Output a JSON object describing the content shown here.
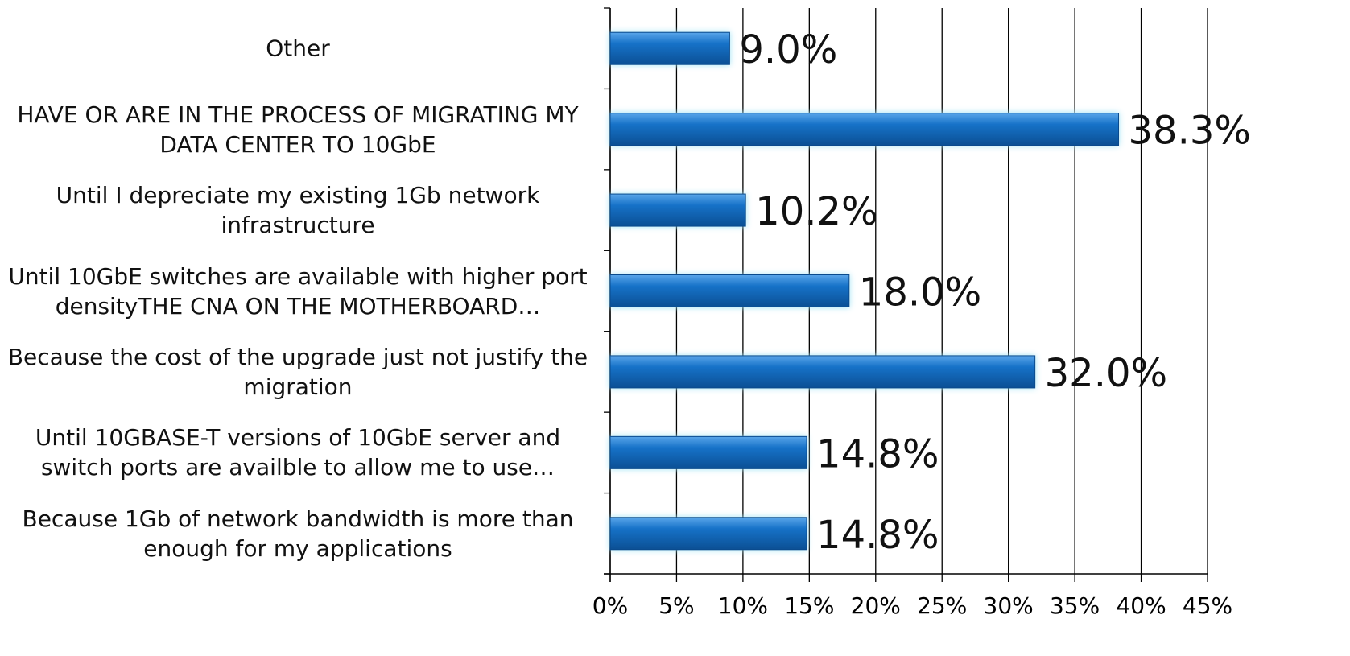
{
  "chart_data": {
    "type": "bar",
    "orientation": "horizontal",
    "categories": [
      "Other",
      "HAVE OR ARE IN THE PROCESS OF MIGRATING MY DATA CENTER TO 10GbE",
      "Until I depreciate my existing 1Gb network infrastructure",
      "Until 10GbE switches are available with higher port densityTHE CNA ON THE MOTHERBOARD…",
      "Because the cost of the upgrade just not justify the migration",
      "Until 10GBASE-T versions of 10GbE server and switch ports are availble to allow me to use…",
      "Because 1Gb of network bandwidth is more than enough for my applications"
    ],
    "values": [
      9.0,
      38.3,
      10.2,
      18.0,
      32.0,
      14.8,
      14.8
    ],
    "value_labels": [
      "9.0%",
      "38.3%",
      "10.2%",
      "18.0%",
      "32.0%",
      "14.8%",
      "14.8%"
    ],
    "color": "#1672c8",
    "xlim": [
      0,
      45
    ],
    "xticks": [
      {
        "value": 0,
        "label": "0%"
      },
      {
        "value": 5,
        "label": "5%"
      },
      {
        "value": 10,
        "label": "10%"
      },
      {
        "value": 15,
        "label": "15%"
      },
      {
        "value": 20,
        "label": "20%"
      },
      {
        "value": 25,
        "label": "25%"
      },
      {
        "value": 30,
        "label": "30%"
      },
      {
        "value": 35,
        "label": "35%"
      },
      {
        "value": 40,
        "label": "40%"
      },
      {
        "value": 45,
        "label": "45%"
      }
    ],
    "grid": true
  }
}
